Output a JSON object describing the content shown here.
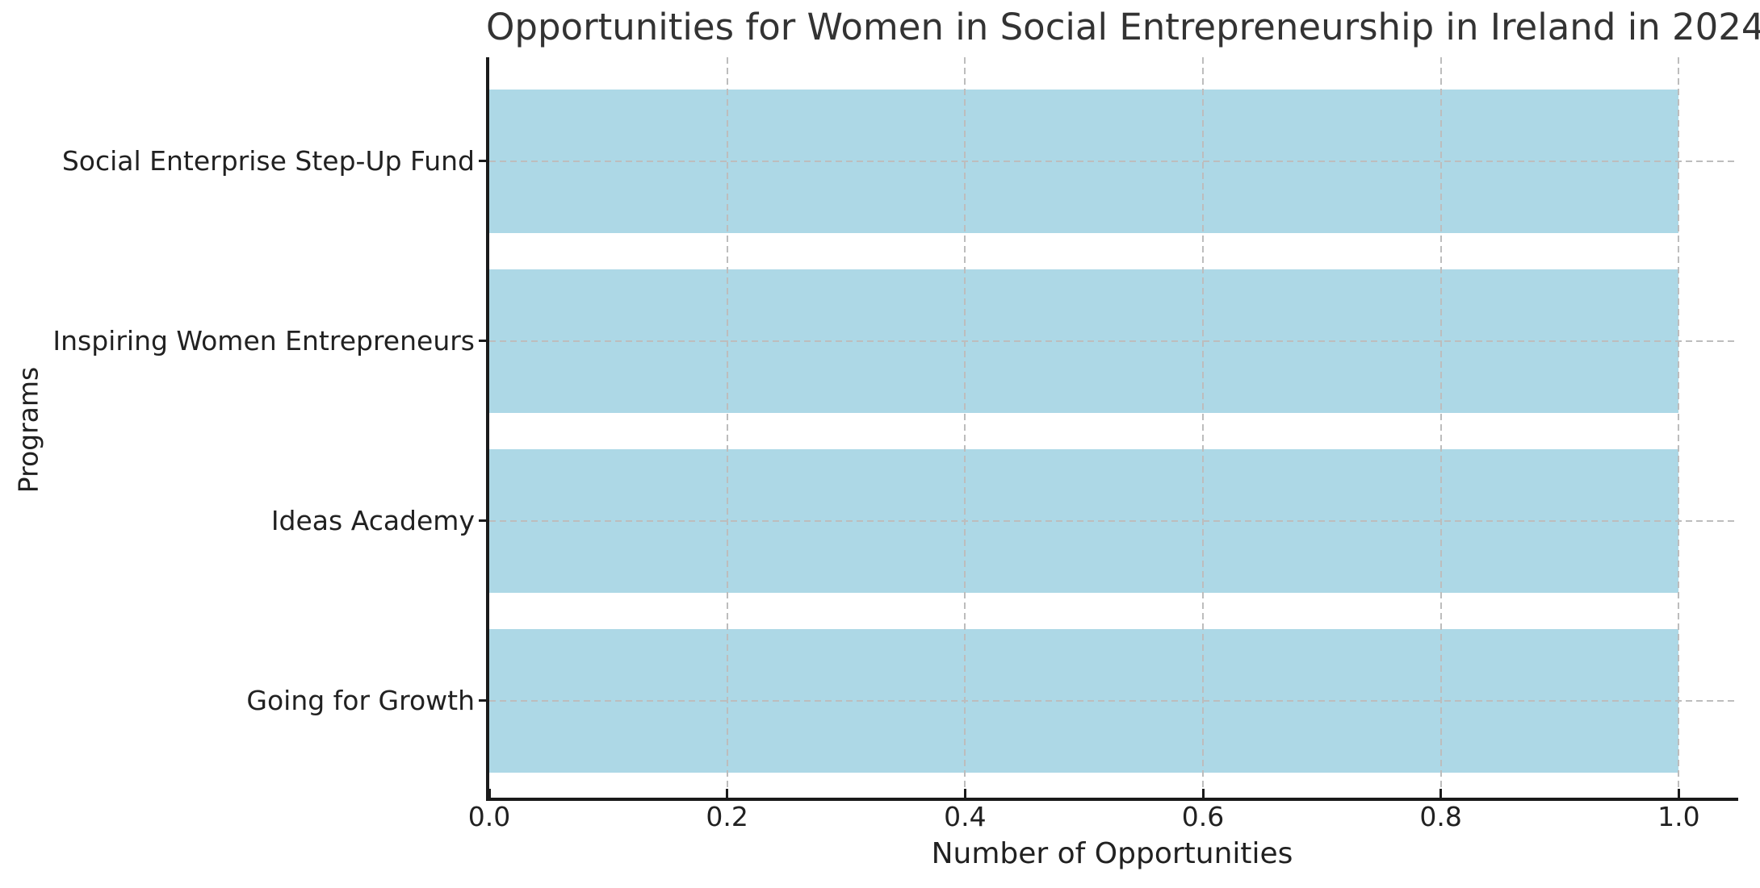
{
  "chart_data": {
    "type": "bar",
    "orientation": "horizontal",
    "title": "Opportunities for Women in Social Entrepreneurship in Ireland in 2024",
    "xlabel": "Number of Opportunities",
    "ylabel": "Programs",
    "categories": [
      "Social Enterprise Step-Up Fund",
      "Inspiring Women Entrepreneurs",
      "Ideas Academy",
      "Going for Growth"
    ],
    "values": [
      1.0,
      1.0,
      1.0,
      1.0
    ],
    "xticks": [
      0.0,
      0.2,
      0.4,
      0.6,
      0.8,
      1.0
    ],
    "xtick_labels": [
      "0.0",
      "0.2",
      "0.4",
      "0.6",
      "0.8",
      "1.0"
    ],
    "xlim": [
      0,
      1.05
    ],
    "bar_color": "#ADD8E6",
    "grid": {
      "visible": true,
      "linestyle": "dashed",
      "color": "#bdbdbd",
      "which": "both"
    },
    "legend": null,
    "background_color": "#ffffff",
    "text_color": "#212121"
  }
}
